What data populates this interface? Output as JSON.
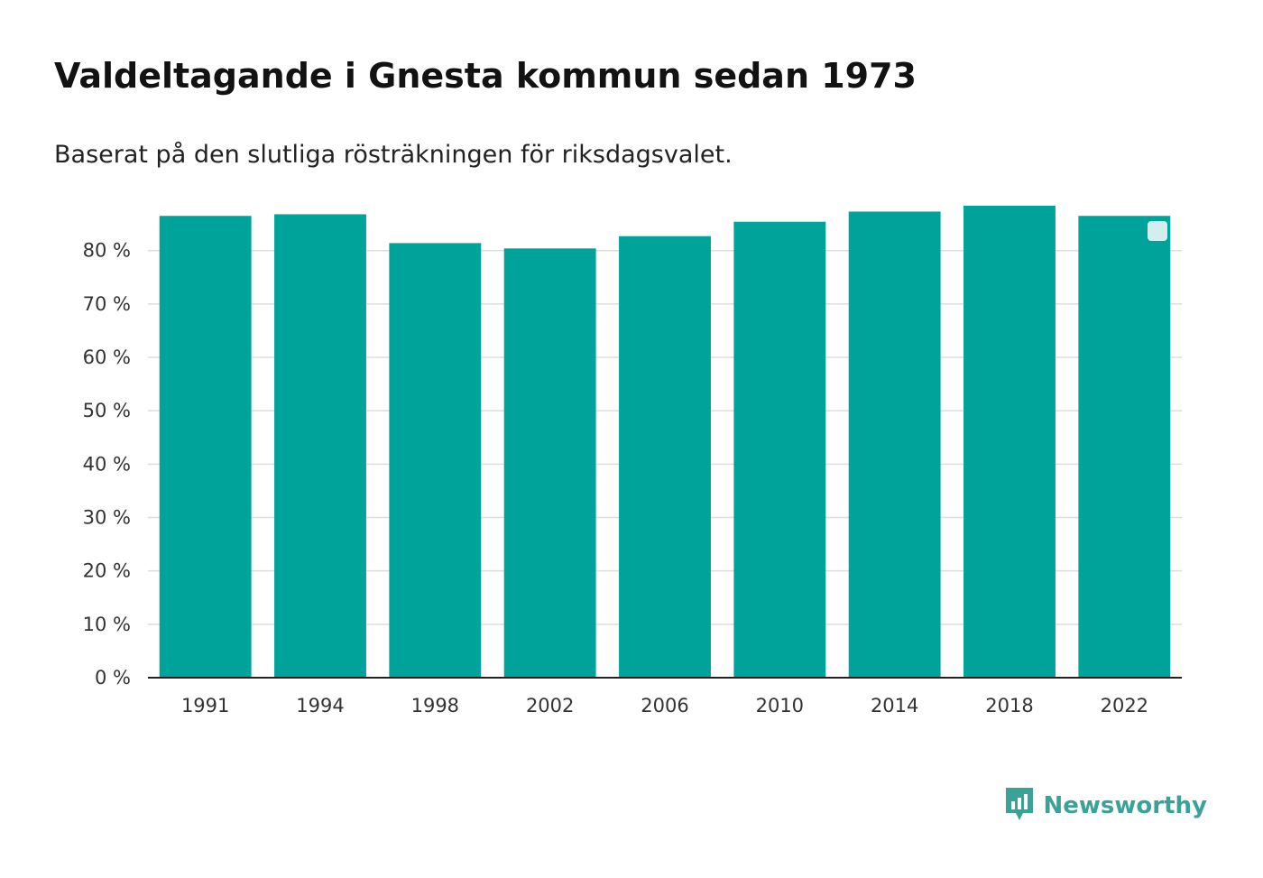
{
  "header": {
    "title": "Valdeltagande i Gnesta kommun sedan 1973",
    "subtitle": "Baserat på den slutliga rösträkningen för riksdagsvalet."
  },
  "brand": {
    "name": "Newsworthy",
    "icon": "newsworthy-logo-icon",
    "color": "#3aa297"
  },
  "colors": {
    "bar": "#00a39a",
    "grid": "#dddddd",
    "axis": "#222222",
    "legend_marker": "#d2efed"
  },
  "chart_data": {
    "type": "bar",
    "title": "Valdeltagande i Gnesta kommun sedan 1973",
    "subtitle": "Baserat på den slutliga rösträkningen för riksdagsvalet.",
    "xlabel": "",
    "ylabel": "",
    "categories": [
      "1991",
      "1994",
      "1998",
      "2002",
      "2006",
      "2010",
      "2014",
      "2018",
      "2022"
    ],
    "values": [
      86.5,
      86.8,
      81.4,
      80.4,
      82.7,
      85.4,
      87.3,
      88.4,
      86.5
    ],
    "ylim": [
      0,
      88.4
    ],
    "yticks": [
      0,
      10,
      20,
      30,
      40,
      50,
      60,
      70,
      80
    ],
    "ytick_labels": [
      "0 %",
      "10 %",
      "20 %",
      "30 %",
      "40 %",
      "50 %",
      "60 %",
      "70 %",
      "80 %"
    ],
    "grid": true,
    "legend": "top-right"
  }
}
